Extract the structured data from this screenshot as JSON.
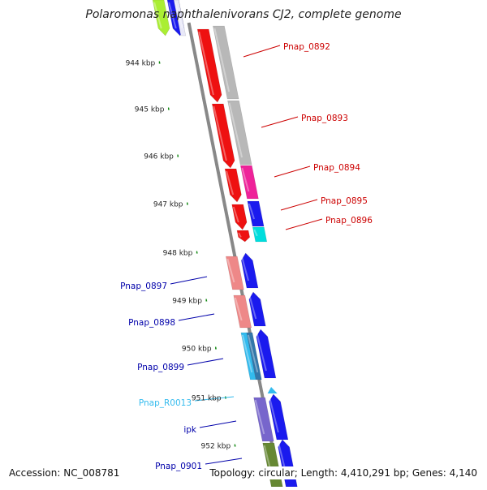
{
  "title": "Polaromonas naphthalenivorans CJ2, complete genome",
  "footer": {
    "accession": "Accession: NC_008781",
    "summary": "Topology: circular; Length: 4,410,291 bp; Genes: 4,140"
  },
  "colors": {
    "forward_label": "#cc0000",
    "reverse_label": "#0000aa",
    "rna_label": "#33bbee",
    "tick": "#118811",
    "backbone": "#888888"
  },
  "kbp_ticks": [
    "944 kbp",
    "945 kbp",
    "946 kbp",
    "947 kbp",
    "948 kbp",
    "949 kbp",
    "950 kbp",
    "951 kbp",
    "952 kbp"
  ],
  "gene_labels": [
    {
      "text": "Pnap_0892",
      "side": "right",
      "color": "#cc0000"
    },
    {
      "text": "Pnap_0893",
      "side": "right",
      "color": "#cc0000"
    },
    {
      "text": "Pnap_0894",
      "side": "right",
      "color": "#cc0000"
    },
    {
      "text": "Pnap_0895",
      "side": "right",
      "color": "#cc0000"
    },
    {
      "text": "Pnap_0896",
      "side": "right",
      "color": "#cc0000"
    },
    {
      "text": "Pnap_0897",
      "side": "left",
      "color": "#0000aa"
    },
    {
      "text": "Pnap_0898",
      "side": "left",
      "color": "#0000aa"
    },
    {
      "text": "Pnap_0899",
      "side": "left",
      "color": "#0000aa"
    },
    {
      "text": "Pnap_R0013",
      "side": "left",
      "color": "#33bbee"
    },
    {
      "text": "ipk",
      "side": "left",
      "color": "#0000aa"
    },
    {
      "text": "Pnap_0901",
      "side": "left",
      "color": "#0000aa"
    }
  ]
}
